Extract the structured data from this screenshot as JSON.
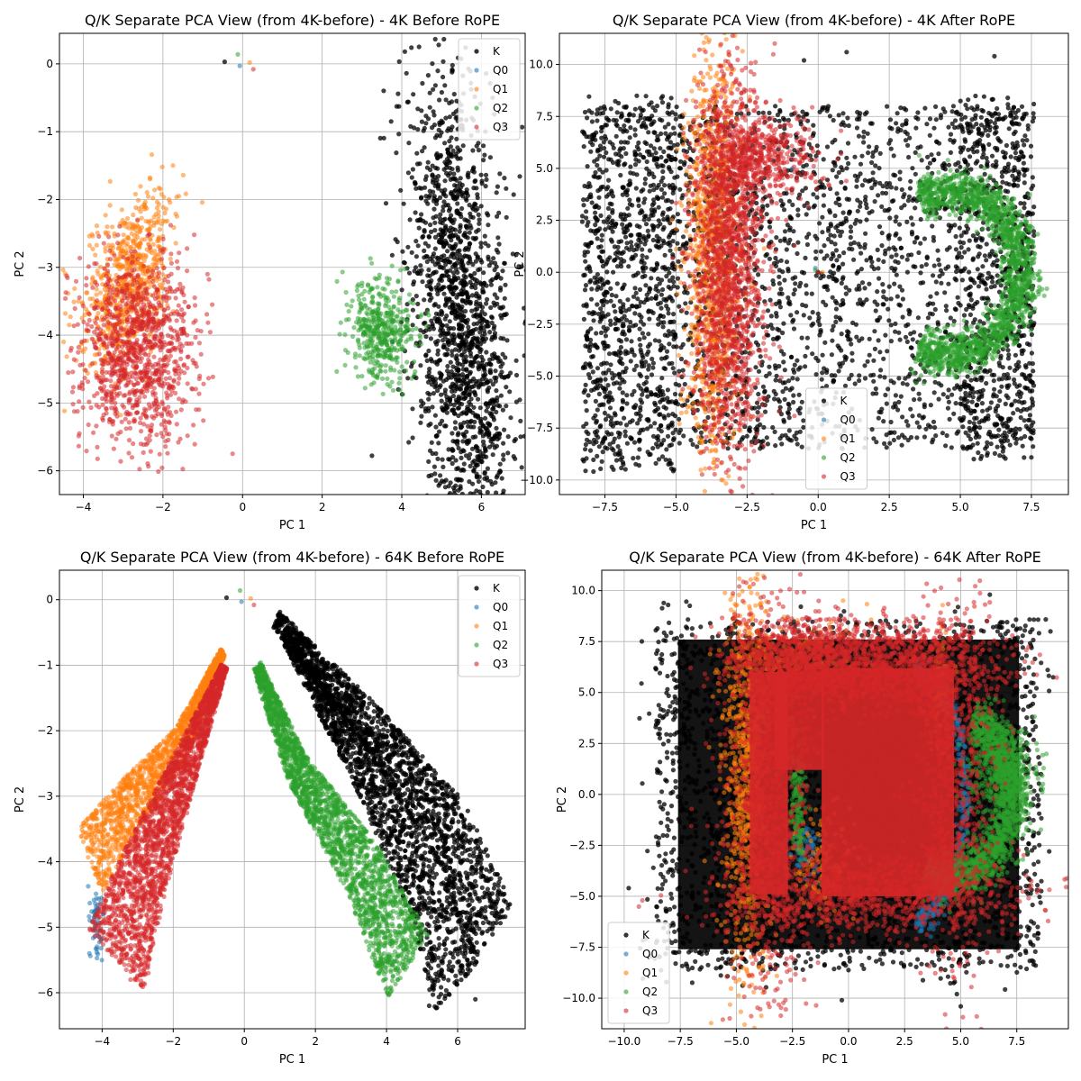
{
  "figure": {
    "background": "#ffffff"
  },
  "chart_data": [
    {
      "type": "scatter",
      "title": "Q/K Separate PCA View (from 4K-before) - 4K Before RoPE",
      "xlabel": "PC 1",
      "ylabel": "PC 2",
      "xlim": [
        -4.6,
        7.1
      ],
      "ylim": [
        -6.35,
        0.45
      ],
      "xticks": [
        -4,
        -2,
        0,
        2,
        4,
        6
      ],
      "yticks": [
        -6,
        -5,
        -4,
        -3,
        -2,
        -1,
        0
      ],
      "grid": true,
      "legend": {
        "position": "top-right",
        "entries": [
          "K",
          "Q0",
          "Q1",
          "Q2",
          "Q3"
        ]
      },
      "series": [
        {
          "name": "K",
          "color": "#000000",
          "clusters": [
            {
              "kind": "ellipse",
              "cx": 5.5,
              "cy": -3.8,
              "rx": 0.55,
              "ry": 1.7,
              "rot": 8,
              "n": 1700,
              "sigma": 0.55
            },
            {
              "kind": "points",
              "xs": [
                -0.45,
                5.0,
                4.35
              ],
              "ys": [
                0.03,
                -0.87,
                -3.0
              ]
            }
          ]
        },
        {
          "name": "Q0",
          "color": "#1f77b4",
          "clusters": [
            {
              "kind": "points",
              "xs": [
                -0.07
              ],
              "ys": [
                -0.03
              ]
            }
          ]
        },
        {
          "name": "Q1",
          "color": "#ff7f0e",
          "clusters": [
            {
              "kind": "ellipse",
              "cx": -2.9,
              "cy": -3.25,
              "rx": 0.45,
              "ry": 0.75,
              "rot": -35,
              "n": 700,
              "sigma": 0.5
            },
            {
              "kind": "points",
              "xs": [
                0.18,
                -1.85,
                -1.95
              ],
              "ys": [
                0.02,
                -2.0,
                -2.2
              ]
            }
          ]
        },
        {
          "name": "Q2",
          "color": "#2ca02c",
          "clusters": [
            {
              "kind": "ellipse",
              "cx": 3.5,
              "cy": -3.9,
              "rx": 0.4,
              "ry": 0.38,
              "rot": -30,
              "n": 450,
              "sigma": 0.5
            },
            {
              "kind": "points",
              "xs": [
                -0.12,
                3.3
              ],
              "ys": [
                0.14,
                -4.7
              ]
            }
          ]
        },
        {
          "name": "Q3",
          "color": "#d62728",
          "clusters": [
            {
              "kind": "ellipse",
              "cx": -2.6,
              "cy": -4.2,
              "rx": 0.65,
              "ry": 0.6,
              "rot": -15,
              "n": 1100,
              "sigma": 0.55
            },
            {
              "kind": "points",
              "xs": [
                0.27,
                -4.1,
                -2.75,
                -1.65
              ],
              "ys": [
                -0.08,
                -5.45,
                -5.6,
                -3.65
              ]
            }
          ]
        }
      ]
    },
    {
      "type": "scatter",
      "title": "Q/K Separate PCA View (from 4K-before) - 4K After RoPE",
      "xlabel": "PC 1",
      "ylabel": "PC 2",
      "xlim": [
        -9.1,
        8.8
      ],
      "ylim": [
        -10.7,
        11.5
      ],
      "xticks": [
        -7.5,
        -5.0,
        -2.5,
        0.0,
        2.5,
        5.0,
        7.5
      ],
      "xtick_labels": [
        "−7.5",
        "−5.0",
        "−2.5",
        "0.0",
        "2.5",
        "5.0",
        "7.5"
      ],
      "yticks": [
        -10.0,
        -7.5,
        -5.0,
        -2.5,
        0.0,
        2.5,
        5.0,
        7.5,
        10.0
      ],
      "ytick_labels": [
        "−10.0",
        "−7.5",
        "−5.0",
        "−2.5",
        "0.0",
        "2.5",
        "5.0",
        "7.5",
        "10.0"
      ],
      "grid": true,
      "legend": {
        "position": "bottom-center",
        "entries": [
          "K",
          "Q0",
          "Q1",
          "Q2",
          "Q3"
        ]
      },
      "series": [
        {
          "name": "K",
          "color": "#000000",
          "clusters": [
            {
              "kind": "rect",
              "x0": -8.3,
              "x1": 7.6,
              "y0": -8.5,
              "y1": 8.0,
              "n": 2600
            },
            {
              "kind": "rect",
              "x0": -8.3,
              "x1": -5.0,
              "y0": -9.6,
              "y1": 8.5,
              "n": 600
            },
            {
              "kind": "rect",
              "x0": 5.0,
              "x1": 7.6,
              "y0": -9.0,
              "y1": 8.5,
              "n": 500
            },
            {
              "kind": "points",
              "xs": [
                -0.5,
                1.0,
                6.2,
                -3.2,
                0.0,
                -7.2
              ],
              "ys": [
                10.2,
                10.6,
                10.4,
                -8.2,
                -2.0,
                -9.5
              ]
            }
          ]
        },
        {
          "name": "Q0",
          "color": "#1f77b4",
          "clusters": [
            {
              "kind": "points",
              "xs": [
                -0.9,
                -0.1,
                -3.6
              ],
              "ys": [
                5.0,
                0.2,
                6.8
              ]
            }
          ]
        },
        {
          "name": "Q1",
          "color": "#ff7f0e",
          "clusters": [
            {
              "kind": "ellipse",
              "cx": -3.7,
              "cy": 1.0,
              "rx": 0.55,
              "ry": 5.5,
              "rot": 0,
              "n": 1100,
              "sigma": 0.45
            },
            {
              "kind": "points",
              "xs": [
                0.15
              ],
              "ys": [
                0.0
              ]
            }
          ]
        },
        {
          "name": "Q2",
          "color": "#2ca02c",
          "clusters": [
            {
              "kind": "arc",
              "cx": 4.6,
              "cy": 0.0,
              "rx": 2.55,
              "ry": 3.95,
              "a0": -115,
              "a1": 115,
              "thick": 0.65,
              "n": 1800
            },
            {
              "kind": "points",
              "xs": [
                -0.1
              ],
              "ys": [
                0.1
              ]
            }
          ]
        },
        {
          "name": "Q3",
          "color": "#d62728",
          "clusters": [
            {
              "kind": "ellipse",
              "cx": -3.2,
              "cy": 0.3,
              "rx": 0.7,
              "ry": 5.2,
              "rot": 0,
              "n": 1700,
              "sigma": 0.45
            },
            {
              "kind": "ellipse",
              "cx": -2.0,
              "cy": 5.6,
              "rx": 1.1,
              "ry": 1.1,
              "rot": 0,
              "n": 500,
              "sigma": 0.45
            },
            {
              "kind": "points",
              "xs": [
                -0.75,
                -1.1,
                0.0
              ],
              "ys": [
                4.6,
                4.0,
                0.0
              ]
            }
          ]
        }
      ]
    },
    {
      "type": "scatter",
      "title": "Q/K Separate PCA View (from 4K-before) - 64K Before RoPE",
      "xlabel": "PC 1",
      "ylabel": "PC 2",
      "xlim": [
        -5.2,
        7.9
      ],
      "ylim": [
        -6.55,
        0.45
      ],
      "xticks": [
        -4,
        -2,
        0,
        2,
        4,
        6
      ],
      "yticks": [
        -6,
        -5,
        -4,
        -3,
        -2,
        -1,
        0
      ],
      "grid": true,
      "legend": {
        "position": "top-right",
        "entries": [
          "K",
          "Q0",
          "Q1",
          "Q2",
          "Q3"
        ]
      },
      "series": [
        {
          "name": "K",
          "color": "#000000",
          "clusters": [
            {
              "kind": "band",
              "path": [
                [
                  0.9,
                  -0.3
                ],
                [
                  3.5,
                  -1.9
                ],
                [
                  5.8,
                  -3.5
                ],
                [
                  7.0,
                  -5.1
                ]
              ],
              "w0": 0.15,
              "w1": 0.7,
              "n": 1500
            },
            {
              "kind": "band",
              "path": [
                [
                  1.2,
                  -0.6
                ],
                [
                  3.5,
                  -2.7
                ],
                [
                  5.2,
                  -4.5
                ],
                [
                  6.0,
                  -5.9
                ]
              ],
              "w0": 0.12,
              "w1": 0.75,
              "n": 1300
            },
            {
              "kind": "points",
              "xs": [
                -0.5,
                6.5,
                5.2
              ],
              "ys": [
                0.03,
                -6.1,
                -6.2
              ]
            }
          ]
        },
        {
          "name": "Q0",
          "color": "#1f77b4",
          "clusters": [
            {
              "kind": "ellipse",
              "cx": -4.15,
              "cy": -4.9,
              "rx": 0.12,
              "ry": 0.25,
              "rot": 0,
              "n": 60,
              "sigma": 0.5
            },
            {
              "kind": "points",
              "xs": [
                -0.08
              ],
              "ys": [
                -0.03
              ]
            }
          ]
        },
        {
          "name": "Q1",
          "color": "#ff7f0e",
          "clusters": [
            {
              "kind": "band",
              "path": [
                [
                  -0.6,
                  -0.8
                ],
                [
                  -1.8,
                  -2.2
                ],
                [
                  -3.3,
                  -3.2
                ],
                [
                  -4.35,
                  -4.0
                ]
              ],
              "w0": 0.08,
              "w1": 0.6,
              "n": 1500
            },
            {
              "kind": "points",
              "xs": [
                0.18
              ],
              "ys": [
                0.02
              ]
            }
          ]
        },
        {
          "name": "Q2",
          "color": "#2ca02c",
          "clusters": [
            {
              "kind": "band",
              "path": [
                [
                  0.35,
                  -1.0
                ],
                [
                  1.5,
                  -2.6
                ],
                [
                  3.3,
                  -4.1
                ],
                [
                  4.6,
                  -5.6
                ]
              ],
              "w0": 0.12,
              "w1": 0.75,
              "n": 2200
            },
            {
              "kind": "points",
              "xs": [
                -0.12
              ],
              "ys": [
                0.14
              ]
            }
          ]
        },
        {
          "name": "Q3",
          "color": "#d62728",
          "clusters": [
            {
              "kind": "band",
              "path": [
                [
                  -0.55,
                  -1.0
                ],
                [
                  -1.7,
                  -2.6
                ],
                [
                  -2.9,
                  -4.3
                ],
                [
                  -3.6,
                  -5.5
                ]
              ],
              "w0": 0.08,
              "w1": 0.9,
              "n": 2200
            },
            {
              "kind": "points",
              "xs": [
                0.27,
                -3.2,
                -2.7
              ],
              "ys": [
                -0.08,
                -5.8,
                -5.7
              ]
            }
          ]
        }
      ]
    },
    {
      "type": "scatter",
      "title": "Q/K Separate PCA View (from 4K-before) - 64K After RoPE",
      "xlabel": "PC 1",
      "ylabel": "PC 2",
      "xlim": [
        -11.0,
        9.8
      ],
      "ylim": [
        -11.5,
        11.0
      ],
      "xticks": [
        -10.0,
        -7.5,
        -5.0,
        -2.5,
        0.0,
        2.5,
        5.0,
        7.5
      ],
      "xtick_labels": [
        "−10.0",
        "−7.5",
        "−5.0",
        "−2.5",
        "0.0",
        "2.5",
        "5.0",
        "7.5"
      ],
      "yticks": [
        -10.0,
        -7.5,
        -5.0,
        -2.5,
        0.0,
        2.5,
        5.0,
        7.5,
        10.0
      ],
      "ytick_labels": [
        "−10.0",
        "−7.5",
        "−5.0",
        "−2.5",
        "0.0",
        "2.5",
        "5.0",
        "7.5",
        "10.0"
      ],
      "grid": true,
      "legend": {
        "position": "bottom-left",
        "entries": [
          "K",
          "Q0",
          "Q1",
          "Q2",
          "Q3"
        ]
      },
      "series": [
        {
          "name": "K",
          "color": "#000000",
          "clusters": [
            {
              "kind": "solid",
              "x0": -7.6,
              "x1": 7.6,
              "y0": -7.6,
              "y1": 7.6
            },
            {
              "kind": "rect",
              "x0": -8.6,
              "x1": 8.6,
              "y0": -8.6,
              "y1": 8.6,
              "n": 2600
            },
            {
              "kind": "rect",
              "x0": -9.4,
              "x1": 9.2,
              "y0": -9.8,
              "y1": 9.5,
              "n": 250
            },
            {
              "kind": "points",
              "xs": [
                -9.8,
                -8.7,
                9.0,
                5.0,
                -0.3,
                6.3
              ],
              "ys": [
                -4.6,
                -3.6,
                8.0,
                -10.4,
                -10.1,
                9.8
              ]
            }
          ]
        },
        {
          "name": "Q0",
          "color": "#1f77b4",
          "clusters": [
            {
              "kind": "arc",
              "cx": 3.0,
              "cy": 0.0,
              "rx": 2.2,
              "ry": 6.1,
              "a0": -90,
              "a1": 90,
              "thick": 0.25,
              "n": 400
            },
            {
              "kind": "ellipse",
              "cx": -2.0,
              "cy": -2.8,
              "rx": 0.4,
              "ry": 0.6,
              "rot": 0,
              "n": 80,
              "sigma": 0.5
            }
          ]
        },
        {
          "name": "Q1",
          "color": "#ff7f0e",
          "clusters": [
            {
              "kind": "ellipse",
              "cx": -4.5,
              "cy": 0.8,
              "rx": 0.6,
              "ry": 5.5,
              "rot": 0,
              "n": 900,
              "sigma": 0.45
            },
            {
              "kind": "ellipse",
              "cx": -2.5,
              "cy": 6.5,
              "rx": 1.5,
              "ry": 1.0,
              "rot": 0,
              "n": 200,
              "sigma": 0.5
            },
            {
              "kind": "ellipse",
              "cx": -1.2,
              "cy": -3.5,
              "rx": 0.7,
              "ry": 1.2,
              "rot": 0,
              "n": 150,
              "sigma": 0.5
            },
            {
              "kind": "ellipse",
              "cx": 4.1,
              "cy": 5.0,
              "rx": 0.3,
              "ry": 1.5,
              "rot": 0,
              "n": 100,
              "sigma": 0.5
            }
          ]
        },
        {
          "name": "Q2",
          "color": "#2ca02c",
          "clusters": [
            {
              "kind": "arc",
              "cx": 4.6,
              "cy": 0.0,
              "rx": 2.7,
              "ry": 4.0,
              "a0": -115,
              "a1": 70,
              "thick": 0.8,
              "n": 1500
            },
            {
              "kind": "ellipse",
              "cx": -2.25,
              "cy": -0.5,
              "rx": 0.18,
              "ry": 1.6,
              "rot": 0,
              "n": 150,
              "sigma": 0.5
            },
            {
              "kind": "ellipse",
              "cx": 6.8,
              "cy": 1.0,
              "rx": 0.8,
              "ry": 1.2,
              "rot": 0,
              "n": 300,
              "sigma": 0.5
            }
          ]
        },
        {
          "name": "Q3",
          "color": "#d62728",
          "clusters": [
            {
              "kind": "solid",
              "x0": -4.4,
              "x1": -2.7,
              "y0": -4.9,
              "y1": 6.0
            },
            {
              "kind": "solid",
              "x0": -1.2,
              "x1": 4.7,
              "y0": -5.0,
              "y1": 6.2
            },
            {
              "kind": "solid",
              "x0": -3.3,
              "x1": -1.1,
              "y0": 1.2,
              "y1": 6.0
            },
            {
              "kind": "ellipse",
              "cx": -1.8,
              "cy": 6.6,
              "rx": 1.7,
              "ry": 0.9,
              "rot": 0,
              "n": 1000,
              "sigma": 0.5
            },
            {
              "kind": "ellipse",
              "cx": 2.3,
              "cy": 6.4,
              "rx": 2.2,
              "ry": 1.0,
              "rot": 0,
              "n": 1000,
              "sigma": 0.5
            },
            {
              "kind": "ellipse",
              "cx": 1.0,
              "cy": -5.0,
              "rx": 3.4,
              "ry": 1.0,
              "rot": 0,
              "n": 900,
              "sigma": 0.5
            },
            {
              "kind": "ellipse",
              "cx": -3.6,
              "cy": 0.0,
              "rx": 1.0,
              "ry": 5.6,
              "rot": 0,
              "n": 1000,
              "sigma": 0.5
            },
            {
              "kind": "ellipse",
              "cx": 4.8,
              "cy": 0.5,
              "rx": 0.9,
              "ry": 4.5,
              "rot": 0,
              "n": 600,
              "sigma": 0.5
            }
          ]
        }
      ]
    }
  ]
}
